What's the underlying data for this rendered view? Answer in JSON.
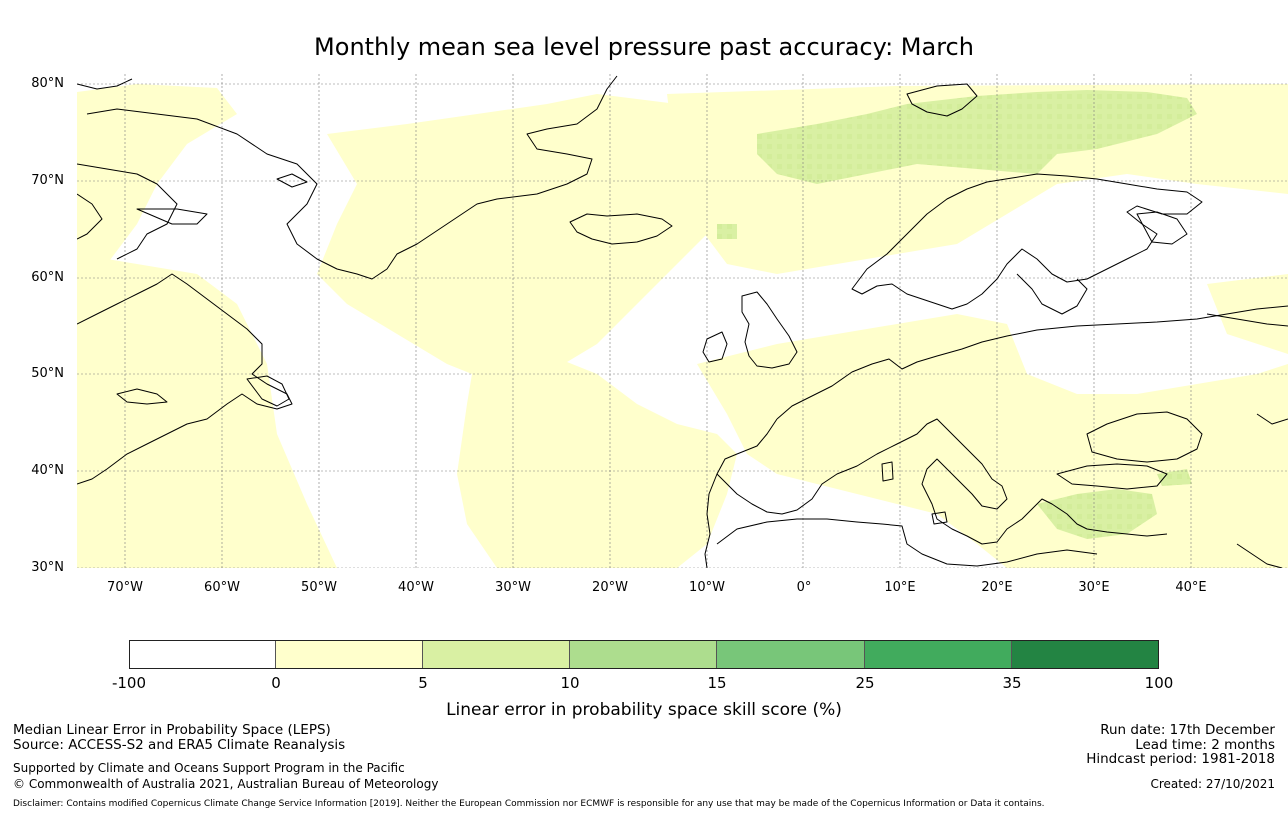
{
  "title": "Monthly mean sea level pressure past accuracy: March",
  "map": {
    "lat_labels": [
      "80°N",
      "70°N",
      "60°N",
      "50°N",
      "40°N",
      "30°N"
    ],
    "lon_labels": [
      "70°W",
      "60°W",
      "50°W",
      "40°W",
      "30°W",
      "20°W",
      "10°W",
      "0°",
      "10°E",
      "20°E",
      "30°E",
      "40°E"
    ],
    "lat_range": [
      30,
      81
    ],
    "lon_range": [
      -75,
      50
    ],
    "lat_ticks": [
      80,
      70,
      60,
      50,
      40,
      30
    ],
    "lon_ticks": [
      -70,
      -60,
      -50,
      -40,
      -30,
      -20,
      -10,
      0,
      10,
      20,
      30,
      40
    ],
    "colors": {
      "class_0_5": "#ffffcc",
      "class_5_10": "#d9f0a3",
      "class_10_15": "#addd8e",
      "coast": "#000000",
      "grid": "#7a7a7a"
    }
  },
  "colorbar": {
    "ticks": [
      "-100",
      "0",
      "5",
      "10",
      "15",
      "25",
      "35",
      "100"
    ],
    "colors": [
      "#ffffff",
      "#ffffcc",
      "#d9f0a3",
      "#addd8e",
      "#78c679",
      "#41ab5d",
      "#238443"
    ],
    "label": "Linear error in probability space skill score (%)"
  },
  "footer": {
    "metric": "Median Linear Error in Probability Space (LEPS)",
    "source": "Source: ACCESS-S2 and ERA5 Climate Reanalysis",
    "support": "Supported by Climate and Oceans Support Program in the Pacific",
    "copyright": "© Commonwealth of Australia 2021, Australian Bureau of Meteorology",
    "run_date": "Run date: 17th December",
    "lead_time": "Lead time: 2 months",
    "hindcast": "Hindcast period: 1981-2018",
    "created": "Created: 27/10/2021",
    "disclaimer": "Disclaimer: Contains modified Copernicus Climate Change Service Information [2019]. Neither the European Commission nor ECMWF is responsible for any use that may be made of the Copernicus Information or Data it contains."
  }
}
